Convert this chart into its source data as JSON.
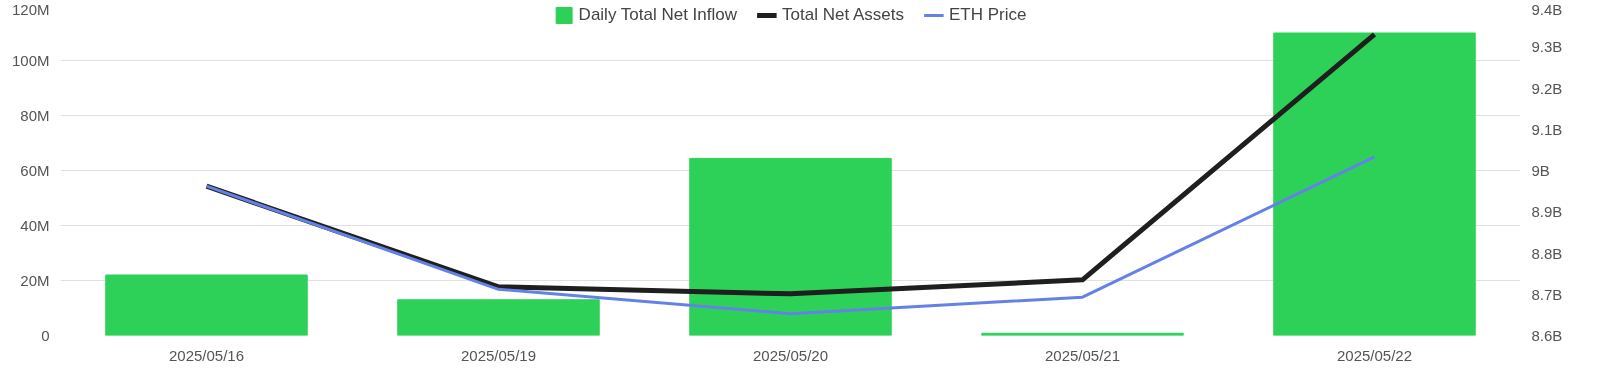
{
  "chart_data": {
    "type": "bar",
    "categories": [
      "2025/05/16",
      "2025/05/19",
      "2025/05/20",
      "2025/05/21",
      "2025/05/22"
    ],
    "series": [
      {
        "name": "Daily Total Net Inflow",
        "color": "#2ed158",
        "values": [
          22,
          13,
          64.4,
          0.8,
          110
        ]
      },
      {
        "name": "Total Net Assets",
        "type": "line",
        "axis": "y2",
        "color": "#1f1f1f",
        "values": [
          8.962,
          8.718,
          8.701,
          8.735,
          9.33
        ]
      },
      {
        "name": "ETH Price",
        "type": "line",
        "axis": "y2",
        "color": "#6482e6",
        "values": [
          8.962,
          8.712,
          8.653,
          8.693,
          9.033
        ]
      }
    ],
    "ylim": [
      0,
      120
    ],
    "yticks": [
      {
        "value": 0,
        "label": "0"
      },
      {
        "value": 20,
        "label": "20M"
      },
      {
        "value": 40,
        "label": "40M"
      },
      {
        "value": 60,
        "label": "60M"
      },
      {
        "value": 80,
        "label": "80M"
      },
      {
        "value": 100,
        "label": "100M"
      },
      {
        "value": 120,
        "label": "120M"
      }
    ],
    "y2lim": [
      8.6,
      9.4
    ],
    "y2ticks": [
      {
        "value": 8.6,
        "label": "8.6B"
      },
      {
        "value": 8.7,
        "label": "8.7B"
      },
      {
        "value": 8.8,
        "label": "8.8B"
      },
      {
        "value": 8.9,
        "label": "8.9B"
      },
      {
        "value": 9.0,
        "label": "9B"
      },
      {
        "value": 9.1,
        "label": "9.1B"
      },
      {
        "value": 9.2,
        "label": "9.2B"
      },
      {
        "value": 9.3,
        "label": "9.3B"
      },
      {
        "value": 9.4,
        "label": "9.4B"
      }
    ],
    "grid": "y",
    "legend": "top",
    "marker": "none"
  }
}
